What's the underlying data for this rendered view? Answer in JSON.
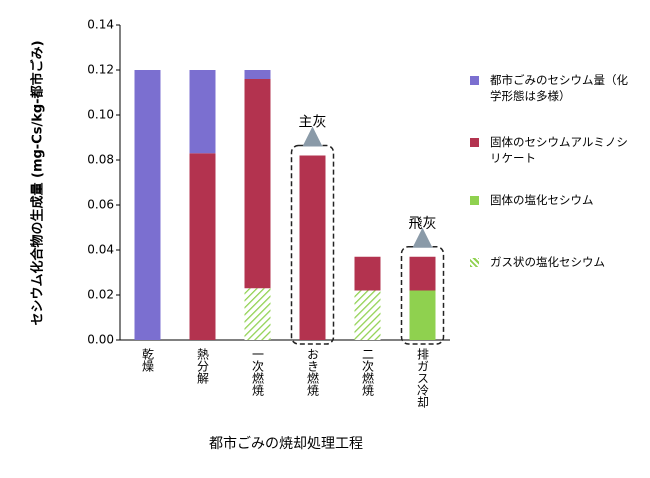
{
  "chart_data": {
    "type": "stacked_bar",
    "y_label": "セシウム化合物の生成量 (mg-Cs/kg-都市ごみ)",
    "x_label": "都市ごみの焼却処理工程",
    "categories": [
      "乾燥",
      "熱分解",
      "一次燃焼",
      "おき燃焼",
      "二次燃焼",
      "排ガス冷却"
    ],
    "series": [
      {
        "name": "都市ごみのセシウム量（化学形態は多様）",
        "color": "#7b6fd0",
        "values": [
          0.12,
          0.037,
          0.004,
          0,
          0,
          0
        ]
      },
      {
        "name": "固体のセシウムアルミノシリケート",
        "color": "#b3334f",
        "values": [
          0,
          0.083,
          0.093,
          0.082,
          0.015,
          0.015
        ]
      },
      {
        "name": "固体の塩化セシウム",
        "color": "#8fd14f",
        "values": [
          0,
          0,
          0,
          0,
          0,
          0.022
        ]
      },
      {
        "name": "ガス状の塩化セシウム",
        "color": "#8fd14f",
        "pattern": "hatch",
        "values": [
          0,
          0,
          0.023,
          0,
          0.022,
          0
        ]
      }
    ],
    "annotations": [
      {
        "text": "主灰",
        "category": 3
      },
      {
        "text": "飛灰",
        "category": 5
      }
    ],
    "ylim": [
      0,
      0.14
    ],
    "yticks": [
      {
        "value": 0,
        "label": "0.00"
      },
      {
        "value": 0.02,
        "label": "0.02"
      },
      {
        "value": 0.04,
        "label": "0.04"
      },
      {
        "value": 0.06,
        "label": "0.06"
      },
      {
        "value": 0.08,
        "label": "0.08"
      },
      {
        "value": 0.1,
        "label": "0.10"
      },
      {
        "value": 0.12,
        "label": "0.12"
      },
      {
        "value": 0.14,
        "label": "0.14"
      }
    ]
  }
}
